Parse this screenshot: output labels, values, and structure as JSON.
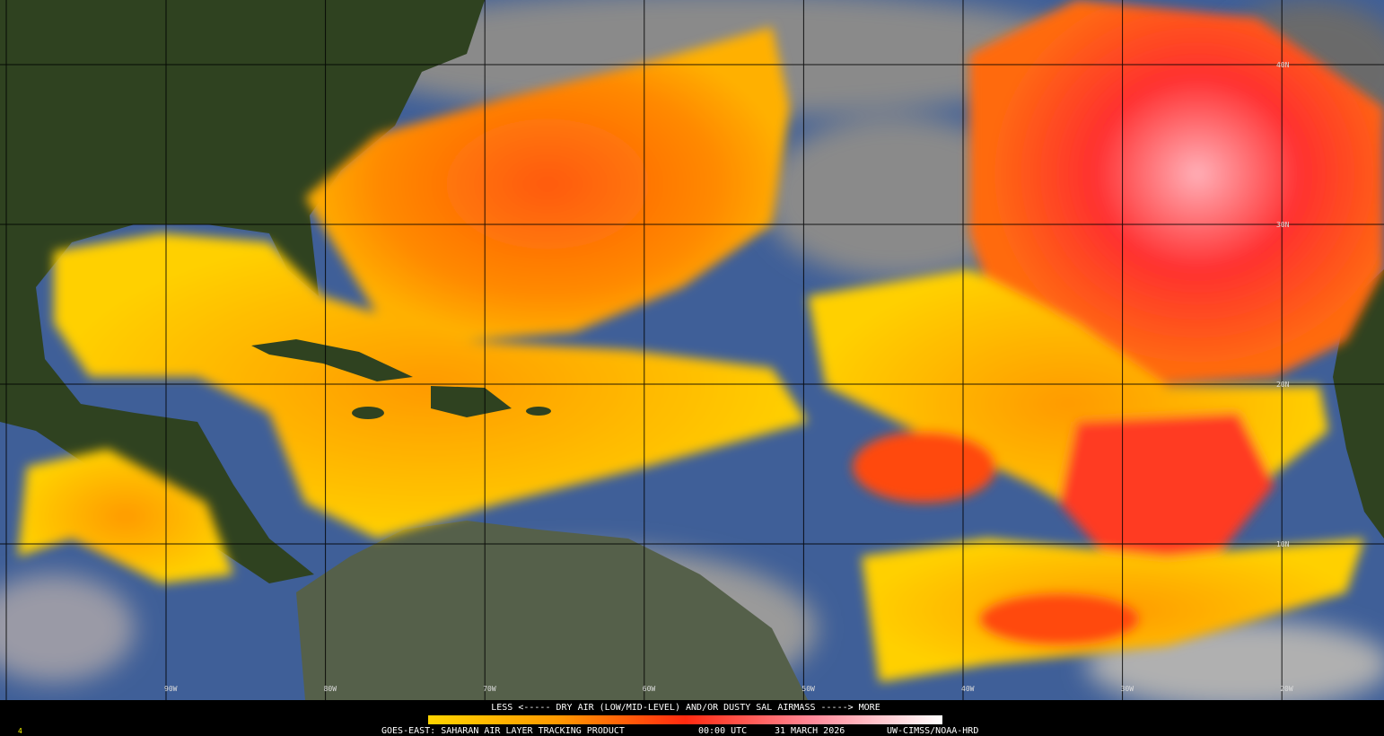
{
  "map": {
    "longitude_labels": [
      "90W",
      "80W",
      "70W",
      "60W",
      "50W",
      "40W",
      "30W",
      "20W"
    ],
    "latitude_labels": [
      "40N",
      "30N",
      "20N",
      "10N"
    ],
    "legend": {
      "caption": "LESS <----- DRY AIR (LOW/MID-LEVEL) AND/OR DUSTY SAL AIRMASS -----> MORE",
      "product": "GOES-EAST: SAHARAN AIR LAYER TRACKING PRODUCT",
      "time": "00:00 UTC",
      "date": "31 MARCH 2026",
      "credit": "UW-CIMSS/NOAA-HRD"
    },
    "corner_number": "4"
  }
}
